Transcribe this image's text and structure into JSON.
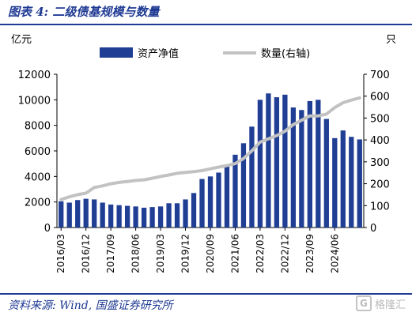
{
  "header": {
    "title": "图表 4:  二级债基规模与数量"
  },
  "footer": {
    "source": "资料来源:  Wind,  国盛证券研究所"
  },
  "watermark": {
    "text": "格隆汇",
    "logo_letter": "G"
  },
  "colors": {
    "bar": "#1f3e94",
    "line": "#c2c2c2",
    "accent": "#1f3a93"
  },
  "chart_data": {
    "type": "bar",
    "ylabel_left": "亿元",
    "ylabel_right": "只",
    "ylim_left": [
      0,
      12000
    ],
    "ylim_right": [
      0,
      700
    ],
    "yticks_left": [
      "0",
      "2000",
      "4000",
      "6000",
      "8000",
      "10000",
      "12000"
    ],
    "yticks_right": [
      "0",
      "100",
      "200",
      "300",
      "400",
      "500",
      "600",
      "700"
    ],
    "xtick_labels": [
      "2016/03",
      "2016/12",
      "2017/09",
      "2018/06",
      "2019/03",
      "2019/12",
      "2020/09",
      "2021/06",
      "2022/03",
      "2022/12",
      "2023/09",
      "2024/06"
    ],
    "legend": {
      "position": "top",
      "bar_label": "资产净值",
      "line_label": "数量(右轴)"
    },
    "grid": false,
    "series": [
      {
        "name": "资产净值",
        "kind": "bar",
        "axis": "left",
        "values": [
          2050,
          1950,
          2150,
          2250,
          2200,
          1950,
          1800,
          1750,
          1700,
          1650,
          1550,
          1600,
          1650,
          1900,
          1900,
          2200,
          2700,
          3800,
          4000,
          4300,
          4800,
          5700,
          6600,
          7900,
          10000,
          10500,
          10200,
          10400,
          9400,
          9200,
          9900,
          10000,
          8500,
          7000,
          7600,
          7100,
          6900
        ]
      },
      {
        "name": "数量(右轴)",
        "kind": "line",
        "axis": "right",
        "values": [
          128,
          140,
          150,
          157,
          183,
          190,
          200,
          206,
          210,
          215,
          218,
          225,
          233,
          240,
          248,
          252,
          255,
          260,
          268,
          276,
          283,
          292,
          315,
          350,
          390,
          405,
          420,
          440,
          470,
          490,
          510,
          510,
          518,
          548,
          570,
          582,
          592
        ]
      }
    ]
  }
}
